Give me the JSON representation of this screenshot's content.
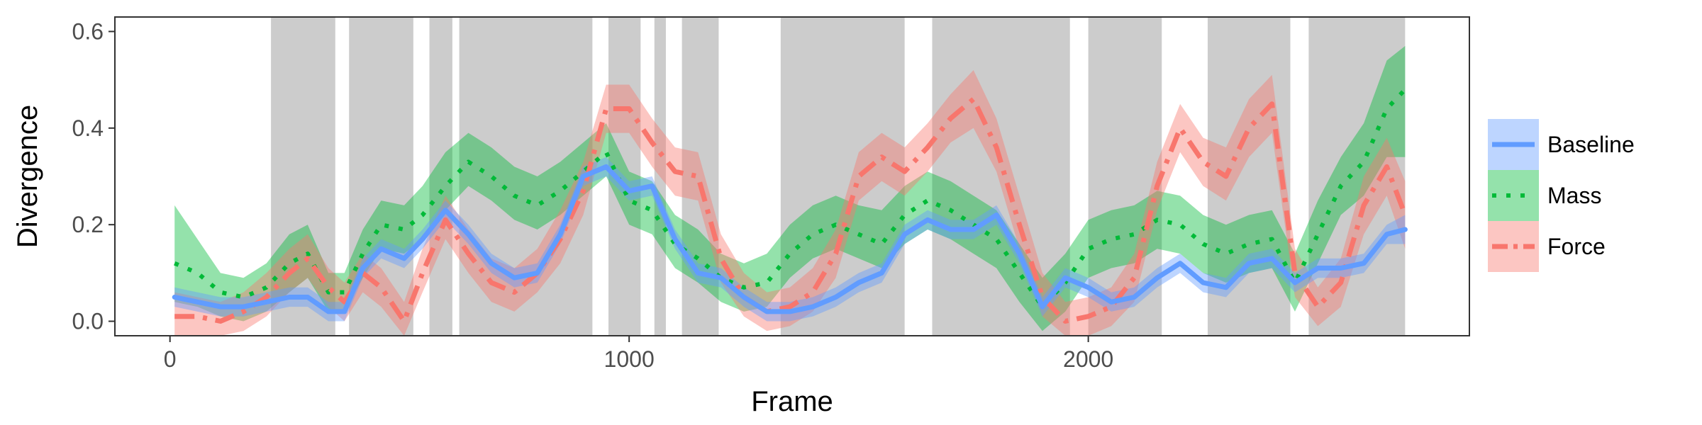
{
  "chart_data": {
    "type": "line",
    "title": "",
    "xlabel": "Frame",
    "ylabel": "Divergence",
    "xlim": [
      -120,
      2830
    ],
    "ylim": [
      -0.03,
      0.63
    ],
    "x_ticks": [
      {
        "value": 0,
        "label": "0"
      },
      {
        "value": 1000,
        "label": "1000"
      },
      {
        "value": 2000,
        "label": "2000"
      }
    ],
    "y_ticks": [
      {
        "value": 0.0,
        "label": "0.0"
      },
      {
        "value": 0.2,
        "label": "0.2"
      },
      {
        "value": 0.4,
        "label": "0.4"
      },
      {
        "value": 0.6,
        "label": "0.6"
      }
    ],
    "grid": false,
    "legend_position": "right",
    "shaded_regions": [
      [
        220,
        360
      ],
      [
        390,
        530
      ],
      [
        565,
        615
      ],
      [
        630,
        920
      ],
      [
        955,
        1025
      ],
      [
        1055,
        1080
      ],
      [
        1115,
        1195
      ],
      [
        1330,
        1600
      ],
      [
        1660,
        1960
      ],
      [
        2000,
        2160
      ],
      [
        2260,
        2440
      ],
      [
        2480,
        2690
      ]
    ],
    "shade_color": "#cccccc",
    "series": [
      {
        "name": "Mass",
        "color": "#00ba38",
        "band_color": "#00ba38",
        "style": "dotted",
        "x": [
          10,
          60,
          110,
          160,
          210,
          260,
          300,
          345,
          380,
          420,
          460,
          510,
          550,
          600,
          650,
          700,
          750,
          800,
          850,
          900,
          950,
          1000,
          1050,
          1100,
          1150,
          1200,
          1250,
          1300,
          1350,
          1400,
          1450,
          1500,
          1550,
          1600,
          1650,
          1700,
          1750,
          1800,
          1850,
          1900,
          1950,
          2000,
          2050,
          2100,
          2150,
          2200,
          2250,
          2300,
          2350,
          2400,
          2450,
          2500,
          2550,
          2600,
          2650,
          2690
        ],
        "y": [
          0.12,
          0.1,
          0.06,
          0.05,
          0.07,
          0.12,
          0.14,
          0.06,
          0.06,
          0.14,
          0.2,
          0.19,
          0.22,
          0.28,
          0.33,
          0.3,
          0.26,
          0.24,
          0.27,
          0.31,
          0.35,
          0.25,
          0.23,
          0.16,
          0.13,
          0.09,
          0.07,
          0.08,
          0.14,
          0.18,
          0.2,
          0.18,
          0.16,
          0.22,
          0.25,
          0.23,
          0.2,
          0.17,
          0.1,
          0.03,
          0.08,
          0.15,
          0.17,
          0.18,
          0.21,
          0.2,
          0.16,
          0.14,
          0.16,
          0.17,
          0.08,
          0.18,
          0.28,
          0.33,
          0.44,
          0.48
        ],
        "lower": [
          0.04,
          0.03,
          0.01,
          0.0,
          0.02,
          0.06,
          0.09,
          0.02,
          0.02,
          0.09,
          0.15,
          0.14,
          0.17,
          0.23,
          0.28,
          0.25,
          0.21,
          0.19,
          0.22,
          0.26,
          0.3,
          0.2,
          0.18,
          0.11,
          0.08,
          0.04,
          0.02,
          0.03,
          0.09,
          0.13,
          0.15,
          0.13,
          0.11,
          0.16,
          0.19,
          0.17,
          0.14,
          0.11,
          0.04,
          -0.02,
          0.02,
          0.09,
          0.11,
          0.12,
          0.15,
          0.14,
          0.1,
          0.08,
          0.1,
          0.11,
          0.02,
          0.12,
          0.22,
          0.26,
          0.34,
          0.34
        ],
        "upper": [
          0.24,
          0.17,
          0.1,
          0.09,
          0.12,
          0.18,
          0.2,
          0.1,
          0.1,
          0.19,
          0.25,
          0.24,
          0.28,
          0.35,
          0.39,
          0.36,
          0.32,
          0.3,
          0.33,
          0.37,
          0.41,
          0.31,
          0.29,
          0.22,
          0.19,
          0.14,
          0.12,
          0.14,
          0.2,
          0.24,
          0.26,
          0.24,
          0.23,
          0.28,
          0.31,
          0.29,
          0.26,
          0.23,
          0.16,
          0.09,
          0.14,
          0.21,
          0.23,
          0.24,
          0.27,
          0.26,
          0.22,
          0.2,
          0.22,
          0.23,
          0.14,
          0.25,
          0.34,
          0.41,
          0.54,
          0.57
        ]
      },
      {
        "name": "Force",
        "color": "#f8766d",
        "band_color": "#f8766d",
        "style": "dashdot",
        "x": [
          10,
          60,
          110,
          160,
          210,
          260,
          300,
          345,
          380,
          420,
          460,
          510,
          550,
          600,
          650,
          700,
          750,
          800,
          850,
          900,
          950,
          1000,
          1050,
          1100,
          1150,
          1200,
          1250,
          1300,
          1350,
          1400,
          1450,
          1500,
          1550,
          1600,
          1650,
          1700,
          1750,
          1800,
          1850,
          1900,
          1950,
          2000,
          2050,
          2100,
          2150,
          2200,
          2250,
          2300,
          2350,
          2400,
          2450,
          2500,
          2550,
          2600,
          2650,
          2690
        ],
        "y": [
          0.01,
          0.01,
          0.0,
          0.02,
          0.05,
          0.1,
          0.13,
          0.07,
          0.04,
          0.1,
          0.07,
          0.0,
          0.1,
          0.21,
          0.14,
          0.08,
          0.06,
          0.1,
          0.17,
          0.27,
          0.44,
          0.44,
          0.37,
          0.31,
          0.3,
          0.13,
          0.05,
          0.02,
          0.03,
          0.06,
          0.14,
          0.3,
          0.34,
          0.31,
          0.36,
          0.42,
          0.46,
          0.36,
          0.2,
          0.05,
          0.0,
          0.01,
          0.03,
          0.09,
          0.28,
          0.4,
          0.33,
          0.3,
          0.4,
          0.45,
          0.1,
          0.03,
          0.08,
          0.24,
          0.32,
          0.22
        ],
        "lower": [
          -0.03,
          -0.03,
          -0.03,
          -0.02,
          0.01,
          0.06,
          0.09,
          0.03,
          0.0,
          0.06,
          0.03,
          -0.03,
          0.06,
          0.17,
          0.1,
          0.04,
          0.02,
          0.06,
          0.12,
          0.22,
          0.39,
          0.39,
          0.32,
          0.26,
          0.25,
          0.08,
          0.01,
          -0.02,
          -0.01,
          0.02,
          0.09,
          0.25,
          0.29,
          0.26,
          0.31,
          0.37,
          0.4,
          0.31,
          0.15,
          0.01,
          -0.03,
          -0.03,
          -0.01,
          0.04,
          0.23,
          0.35,
          0.28,
          0.25,
          0.34,
          0.39,
          0.05,
          -0.01,
          0.03,
          0.18,
          0.26,
          0.15
        ],
        "upper": [
          0.06,
          0.05,
          0.04,
          0.06,
          0.1,
          0.15,
          0.18,
          0.11,
          0.08,
          0.14,
          0.11,
          0.04,
          0.15,
          0.26,
          0.19,
          0.13,
          0.11,
          0.15,
          0.23,
          0.33,
          0.49,
          0.49,
          0.42,
          0.36,
          0.35,
          0.18,
          0.1,
          0.06,
          0.07,
          0.11,
          0.19,
          0.35,
          0.39,
          0.36,
          0.41,
          0.47,
          0.52,
          0.42,
          0.26,
          0.1,
          0.04,
          0.05,
          0.07,
          0.14,
          0.33,
          0.45,
          0.38,
          0.36,
          0.46,
          0.51,
          0.15,
          0.07,
          0.13,
          0.3,
          0.38,
          0.29
        ]
      },
      {
        "name": "Baseline",
        "color": "#619cff",
        "band_color": "#619cff",
        "style": "solid",
        "x": [
          10,
          60,
          110,
          160,
          210,
          260,
          300,
          345,
          380,
          420,
          460,
          510,
          550,
          600,
          650,
          700,
          750,
          800,
          850,
          900,
          950,
          1000,
          1050,
          1100,
          1150,
          1200,
          1250,
          1300,
          1350,
          1400,
          1450,
          1500,
          1550,
          1600,
          1650,
          1700,
          1750,
          1800,
          1850,
          1900,
          1950,
          2000,
          2050,
          2100,
          2150,
          2200,
          2250,
          2300,
          2350,
          2400,
          2450,
          2500,
          2550,
          2600,
          2650,
          2690
        ],
        "y": [
          0.05,
          0.04,
          0.03,
          0.03,
          0.04,
          0.05,
          0.05,
          0.02,
          0.02,
          0.11,
          0.15,
          0.13,
          0.17,
          0.23,
          0.18,
          0.12,
          0.09,
          0.1,
          0.18,
          0.3,
          0.32,
          0.27,
          0.28,
          0.17,
          0.1,
          0.09,
          0.05,
          0.02,
          0.02,
          0.03,
          0.05,
          0.08,
          0.1,
          0.18,
          0.21,
          0.19,
          0.19,
          0.22,
          0.14,
          0.03,
          0.09,
          0.07,
          0.04,
          0.05,
          0.09,
          0.12,
          0.08,
          0.07,
          0.12,
          0.13,
          0.08,
          0.11,
          0.11,
          0.12,
          0.18,
          0.19
        ],
        "lower": [
          0.03,
          0.02,
          0.01,
          0.01,
          0.02,
          0.03,
          0.03,
          0.0,
          0.0,
          0.09,
          0.13,
          0.11,
          0.15,
          0.21,
          0.16,
          0.1,
          0.07,
          0.08,
          0.16,
          0.28,
          0.3,
          0.25,
          0.26,
          0.15,
          0.08,
          0.07,
          0.03,
          0.0,
          0.0,
          0.01,
          0.03,
          0.06,
          0.08,
          0.16,
          0.19,
          0.17,
          0.17,
          0.2,
          0.12,
          0.01,
          0.07,
          0.05,
          0.02,
          0.03,
          0.07,
          0.1,
          0.06,
          0.05,
          0.1,
          0.11,
          0.06,
          0.09,
          0.09,
          0.1,
          0.16,
          0.16
        ],
        "upper": [
          0.07,
          0.06,
          0.05,
          0.05,
          0.06,
          0.07,
          0.07,
          0.04,
          0.04,
          0.13,
          0.17,
          0.15,
          0.19,
          0.25,
          0.2,
          0.14,
          0.11,
          0.12,
          0.2,
          0.32,
          0.34,
          0.29,
          0.3,
          0.19,
          0.12,
          0.11,
          0.07,
          0.04,
          0.04,
          0.05,
          0.07,
          0.1,
          0.12,
          0.2,
          0.23,
          0.21,
          0.21,
          0.24,
          0.16,
          0.05,
          0.11,
          0.09,
          0.06,
          0.07,
          0.11,
          0.14,
          0.1,
          0.09,
          0.14,
          0.15,
          0.1,
          0.13,
          0.13,
          0.14,
          0.2,
          0.22
        ]
      }
    ],
    "legend": [
      "Baseline",
      "Mass",
      "Force"
    ]
  }
}
